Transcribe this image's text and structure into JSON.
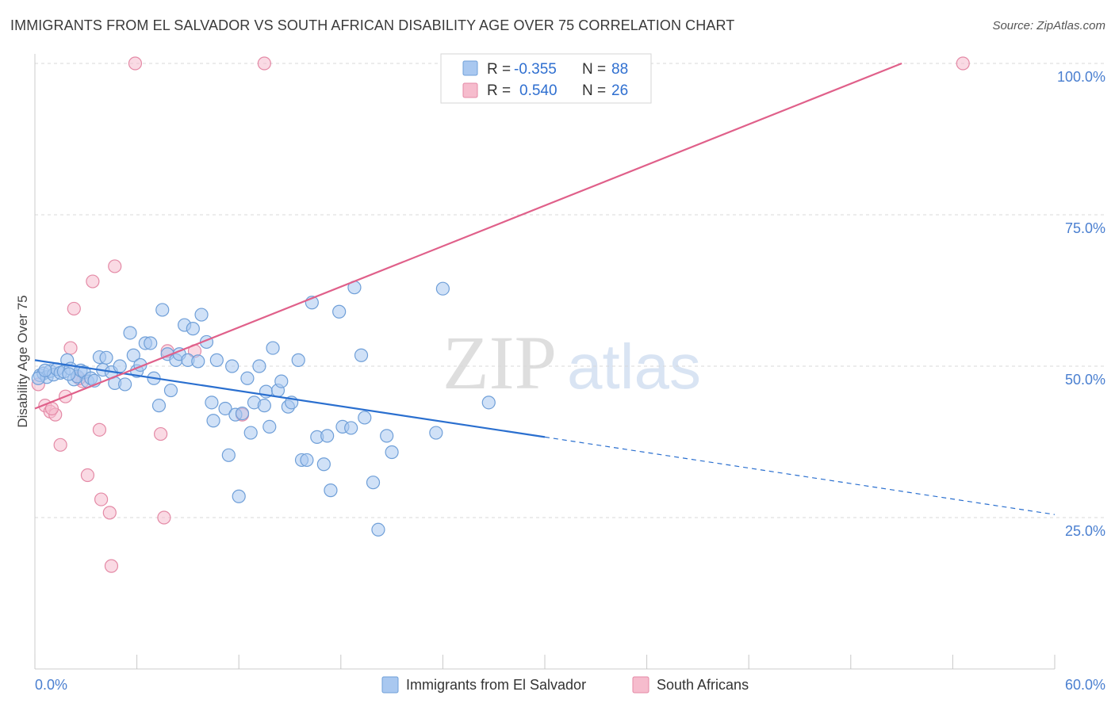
{
  "title": "IMMIGRANTS FROM EL SALVADOR VS SOUTH AFRICAN DISABILITY AGE OVER 75 CORRELATION CHART",
  "source": "Source: ZipAtlas.com",
  "watermark": {
    "zip": "ZIP",
    "atlas": "atlas"
  },
  "colors": {
    "blue_fill": "#a9c8f0",
    "blue_stroke": "#6f9fd8",
    "blue_line": "#2a6fcf",
    "pink_fill": "#f6bccd",
    "pink_stroke": "#e48aa6",
    "pink_line": "#e0608a",
    "tick_label": "#4a7fd0",
    "grid": "#d8d8d8"
  },
  "legend": {
    "rows": [
      {
        "r_label": "R =",
        "r_value": "-0.355",
        "n_label": "N =",
        "n_value": "88"
      },
      {
        "r_label": "R =",
        "r_value": "0.540",
        "n_label": "N =",
        "n_value": "26"
      }
    ]
  },
  "chart_data": {
    "type": "scatter",
    "title": "IMMIGRANTS FROM EL SALVADOR VS SOUTH AFRICAN DISABILITY AGE OVER 75 CORRELATION CHART",
    "xlabel": "",
    "ylabel": "Disability Age Over 75",
    "xlim": [
      0,
      60
    ],
    "ylim": [
      0,
      102
    ],
    "x_tick_labels": [
      "0.0%",
      "60.0%"
    ],
    "y_ticks": [
      25,
      50,
      75,
      100
    ],
    "y_tick_labels": [
      "25.0%",
      "50.0%",
      "75.0%",
      "100.0%"
    ],
    "grid": true,
    "legend_position": "top-center",
    "series": [
      {
        "name": "Immigrants from El Salvador",
        "color": "#a9c8f0",
        "r": -0.355,
        "n": 88,
        "trend": {
          "x0": 0,
          "y0": 51.0,
          "x1": 30,
          "y1": 38.3,
          "dashed_to_x": 60,
          "dashed_to_y": 25.5
        },
        "points": [
          [
            0.3,
            48.5
          ],
          [
            0.5,
            48.8
          ],
          [
            0.7,
            48.2
          ],
          [
            0.9,
            49.2
          ],
          [
            1.1,
            48.6
          ],
          [
            1.3,
            49.5
          ],
          [
            1.5,
            48.9
          ],
          [
            1.7,
            49.1
          ],
          [
            1.9,
            51.0
          ],
          [
            2.1,
            49.6
          ],
          [
            2.3,
            47.8
          ],
          [
            2.5,
            48.3
          ],
          [
            2.7,
            49.3
          ],
          [
            2.9,
            49.0
          ],
          [
            3.1,
            47.5
          ],
          [
            3.3,
            48.0
          ],
          [
            3.5,
            47.6
          ],
          [
            3.8,
            51.5
          ],
          [
            4.0,
            49.4
          ],
          [
            4.2,
            51.4
          ],
          [
            4.5,
            49.0
          ],
          [
            4.7,
            47.2
          ],
          [
            5.0,
            50.0
          ],
          [
            5.3,
            47.0
          ],
          [
            5.6,
            55.5
          ],
          [
            5.8,
            51.8
          ],
          [
            6.0,
            49.2
          ],
          [
            6.2,
            50.2
          ],
          [
            6.5,
            53.8
          ],
          [
            6.8,
            53.8
          ],
          [
            7.0,
            48.0
          ],
          [
            7.3,
            43.5
          ],
          [
            7.5,
            59.3
          ],
          [
            7.8,
            52.0
          ],
          [
            8.0,
            46.0
          ],
          [
            8.3,
            51.0
          ],
          [
            8.5,
            52.0
          ],
          [
            8.8,
            56.8
          ],
          [
            9.0,
            51.0
          ],
          [
            9.3,
            56.2
          ],
          [
            9.6,
            50.8
          ],
          [
            9.8,
            58.5
          ],
          [
            10.1,
            54.0
          ],
          [
            10.4,
            44.0
          ],
          [
            10.5,
            41.0
          ],
          [
            10.7,
            51.0
          ],
          [
            11.2,
            43.0
          ],
          [
            11.4,
            35.3
          ],
          [
            11.6,
            50.0
          ],
          [
            11.8,
            42.0
          ],
          [
            12.0,
            28.5
          ],
          [
            12.2,
            42.2
          ],
          [
            12.5,
            48.0
          ],
          [
            12.7,
            39.0
          ],
          [
            12.9,
            44.0
          ],
          [
            13.2,
            50.0
          ],
          [
            13.5,
            43.5
          ],
          [
            13.6,
            45.8
          ],
          [
            13.8,
            40.0
          ],
          [
            14.0,
            53.0
          ],
          [
            14.3,
            46.0
          ],
          [
            14.5,
            47.5
          ],
          [
            14.9,
            43.3
          ],
          [
            15.1,
            44.0
          ],
          [
            15.5,
            51.0
          ],
          [
            15.7,
            34.5
          ],
          [
            16.0,
            34.5
          ],
          [
            16.3,
            60.5
          ],
          [
            16.6,
            38.3
          ],
          [
            17.0,
            33.8
          ],
          [
            17.2,
            38.5
          ],
          [
            17.4,
            29.5
          ],
          [
            17.9,
            59.0
          ],
          [
            18.1,
            40.0
          ],
          [
            18.6,
            39.8
          ],
          [
            18.8,
            63.0
          ],
          [
            19.2,
            51.8
          ],
          [
            19.4,
            41.5
          ],
          [
            19.9,
            30.8
          ],
          [
            20.2,
            23.0
          ],
          [
            20.7,
            38.5
          ],
          [
            21.0,
            35.8
          ],
          [
            23.6,
            39.0
          ],
          [
            24.0,
            62.8
          ],
          [
            26.7,
            44.0
          ],
          [
            0.2,
            48.0
          ],
          [
            0.6,
            49.3
          ],
          [
            2.0,
            48.7
          ]
        ]
      },
      {
        "name": "South Africans",
        "color": "#f6bccd",
        "r": 0.54,
        "n": 26,
        "trend": {
          "x0": 0,
          "y0": 43.0,
          "x1": 51,
          "y1": 100.0
        },
        "points": [
          [
            0.2,
            47.0
          ],
          [
            0.6,
            43.5
          ],
          [
            0.9,
            42.5
          ],
          [
            1.2,
            42.0
          ],
          [
            1.5,
            37.0
          ],
          [
            1.8,
            45.0
          ],
          [
            2.1,
            53.0
          ],
          [
            2.3,
            59.5
          ],
          [
            2.8,
            47.5
          ],
          [
            3.1,
            32.0
          ],
          [
            3.4,
            64.0
          ],
          [
            3.8,
            39.5
          ],
          [
            3.9,
            28.0
          ],
          [
            4.4,
            25.8
          ],
          [
            4.5,
            17.0
          ],
          [
            4.7,
            66.5
          ],
          [
            5.9,
            100.0
          ],
          [
            7.4,
            38.8
          ],
          [
            7.6,
            25.0
          ],
          [
            7.8,
            52.5
          ],
          [
            9.4,
            52.5
          ],
          [
            12.2,
            42.0
          ],
          [
            13.5,
            100.0
          ],
          [
            54.6,
            100.0
          ],
          [
            1.0,
            43.0
          ],
          [
            2.6,
            48.0
          ]
        ]
      }
    ]
  }
}
